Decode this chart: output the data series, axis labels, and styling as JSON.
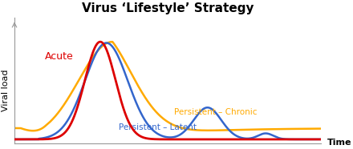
{
  "title": "Virus ‘Lifestyle’ Strategy",
  "xlabel": "Time",
  "ylabel": "Viral load",
  "background_color": "#ffffff",
  "title_fontsize": 11,
  "label_fontsize": 8,
  "acute_label": "Acute",
  "chronic_label": "Persistent – Chronic",
  "latent_label": "Persistent – Latent",
  "acute_color": "#dd0000",
  "blue_color": "#3366cc",
  "orange_color": "#ffaa00",
  "xlim": [
    0,
    100
  ],
  "ylim": [
    -0.04,
    1.1
  ]
}
